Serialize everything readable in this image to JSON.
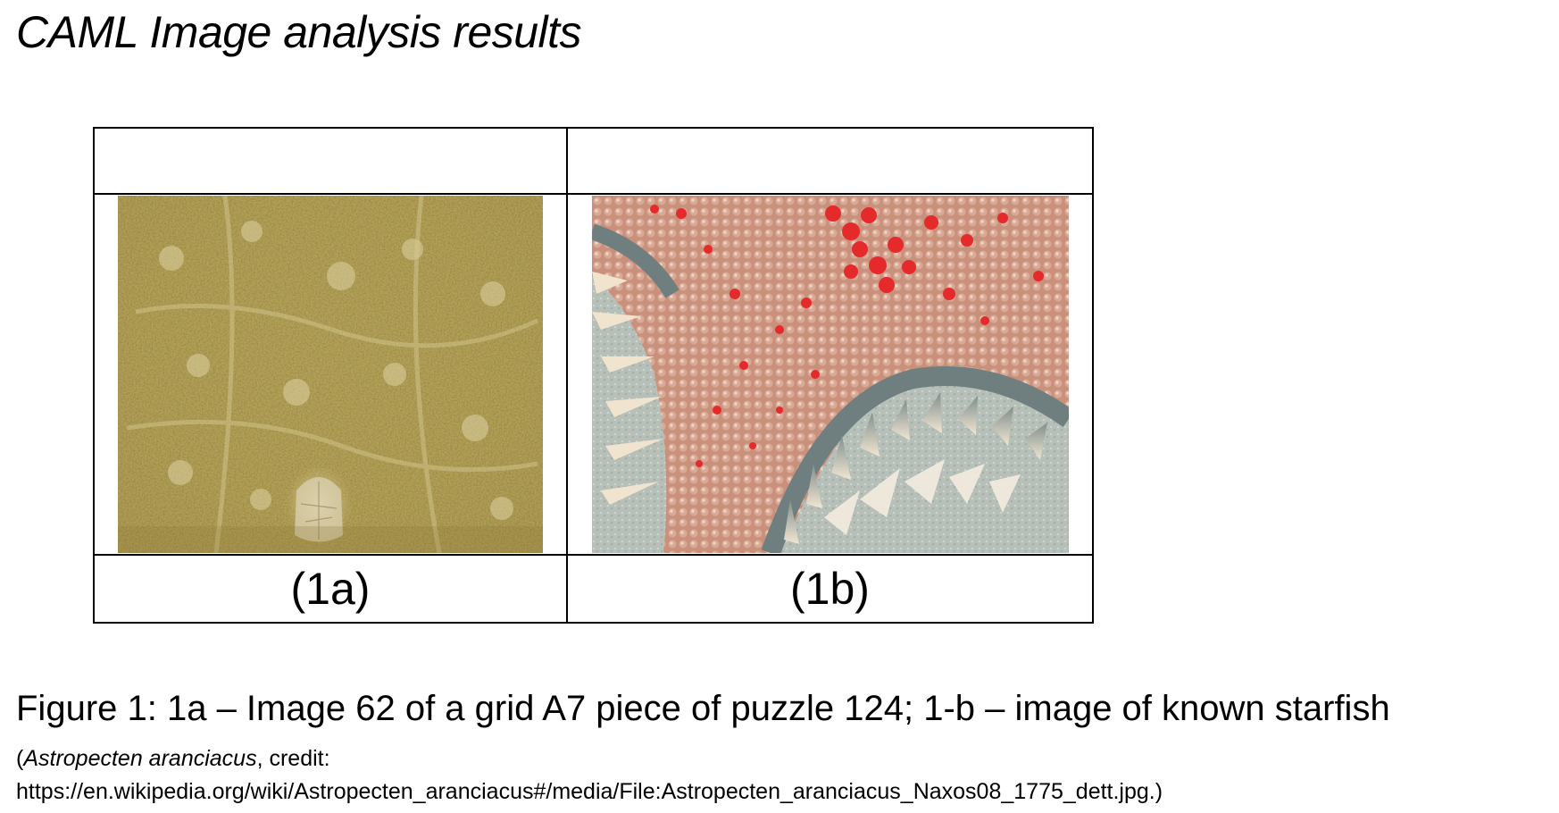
{
  "document": {
    "title": "CAML Image analysis results"
  },
  "figure_table": {
    "header_cells": [
      "",
      ""
    ],
    "images": [
      {
        "name": "puzzle-piece-image",
        "description_icon": "sand-texture-photo"
      },
      {
        "name": "starfish-image",
        "description_icon": "starfish-closeup-photo"
      }
    ],
    "labels": [
      "(1a)",
      "(1b)"
    ]
  },
  "caption": {
    "main": "Figure 1: 1a – Image 62 of a grid A7 piece of puzzle 124; 1-b – image of known starfish",
    "credit_open": "(",
    "species": "Astropecten aranciacus",
    "credit_rest": ", credit:",
    "url": "https://en.wikipedia.org/wiki/Astropecten_aranciacus#/media/File:Astropecten_aranciacus_Naxos08_1775_dett.jpg.)"
  },
  "colors": {
    "sand": "#b9a45c",
    "starfish_body": "#c98e7a",
    "starfish_spots": "#e8282b",
    "spines": "#8a9a98"
  }
}
